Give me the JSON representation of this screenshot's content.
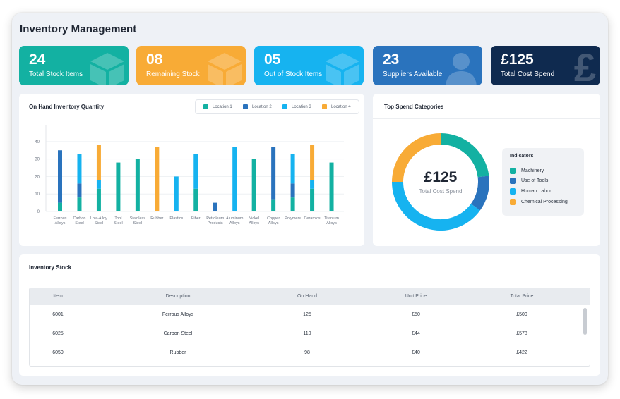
{
  "app": {
    "title": "Inventory Management"
  },
  "kpis": [
    {
      "value": "24",
      "label": "Total Stock Items",
      "color": "#13b1a2",
      "icon": "box-icon"
    },
    {
      "value": "08",
      "label": "Remaining Stock",
      "color": "#f8ab36",
      "icon": "box-icon"
    },
    {
      "value": "05",
      "label": "Out of Stock Items",
      "color": "#16b3f0",
      "icon": "box-icon"
    },
    {
      "value": "23",
      "label": "Suppliers Available",
      "color": "#2a73bd",
      "icon": "person-icon"
    },
    {
      "value": "£125",
      "label": "Total Cost Spend",
      "color": "#0f2a4f",
      "icon": "pound-icon",
      "icon_glyph": "£"
    }
  ],
  "inventory_chart": {
    "title": "On Hand Inventory Quantity",
    "legend": [
      {
        "name": "Location 1",
        "color": "#13b1a2"
      },
      {
        "name": "Location 2",
        "color": "#2a73bd"
      },
      {
        "name": "Location 3",
        "color": "#16b3f0"
      },
      {
        "name": "Location 4",
        "color": "#f8ab36"
      }
    ]
  },
  "chart_data": {
    "type": "bar",
    "stacked": true,
    "categories": [
      [
        "Ferrous",
        "Alloys"
      ],
      [
        "Carbon",
        "Steel"
      ],
      [
        "Low-Alloy",
        "Steel"
      ],
      [
        "Tool",
        "Steel"
      ],
      [
        "Stainless",
        "Steel"
      ],
      [
        "Rubber"
      ],
      [
        "Plastics"
      ],
      [
        "Fiber"
      ],
      [
        "Petroleum",
        "Products"
      ],
      [
        "Aluminum",
        "Alloys"
      ],
      [
        "Nickel",
        "Alloys"
      ],
      [
        "Copper",
        "Alloys"
      ],
      [
        "Polymers"
      ],
      [
        "Ceramics"
      ],
      [
        "Titanium",
        "Alloys"
      ]
    ],
    "series": [
      {
        "name": "Location 1",
        "color": "#13b1a2",
        "values": [
          5,
          8,
          13,
          28,
          30,
          0,
          0,
          13,
          0,
          0,
          30,
          7,
          8,
          13,
          28
        ]
      },
      {
        "name": "Location 2",
        "color": "#2a73bd",
        "values": [
          30,
          8,
          0,
          0,
          0,
          0,
          0,
          0,
          5,
          0,
          0,
          30,
          8,
          0,
          0
        ]
      },
      {
        "name": "Location 3",
        "color": "#16b3f0",
        "values": [
          0,
          17,
          5,
          0,
          0,
          0,
          20,
          20,
          0,
          37,
          0,
          0,
          17,
          5,
          0
        ]
      },
      {
        "name": "Location 4",
        "color": "#f8ab36",
        "values": [
          0,
          0,
          20,
          0,
          0,
          37,
          0,
          0,
          0,
          0,
          0,
          0,
          0,
          20,
          0
        ]
      }
    ],
    "yticks": [
      0,
      10,
      20,
      30,
      40
    ],
    "ylim": [
      0,
      48
    ],
    "grid": true
  },
  "spend": {
    "title": "Top Spend Categories",
    "center_value": "£125",
    "center_label": "Total Cost Spend",
    "indicators_title": "Indicators",
    "slices": [
      {
        "name": "Machinery",
        "color": "#13b1a2",
        "value": 23
      },
      {
        "name": "Use of Tools",
        "color": "#2a73bd",
        "value": 12
      },
      {
        "name": "Human Labor",
        "color": "#16b3f0",
        "value": 40
      },
      {
        "name": "Chemical Processing",
        "color": "#f8ab36",
        "value": 25
      }
    ]
  },
  "stock": {
    "title": "Inventory Stock",
    "columns": [
      "Item",
      "Description",
      "On Hand",
      "Unit Price",
      "Total Price"
    ],
    "rows": [
      [
        "6001",
        "Ferrous Alloys",
        "125",
        "£50",
        "£500"
      ],
      [
        "6025",
        "Carbon Steel",
        "110",
        "£44",
        "£578"
      ],
      [
        "6050",
        "Rubber",
        "98",
        "£40",
        "£422"
      ]
    ]
  }
}
